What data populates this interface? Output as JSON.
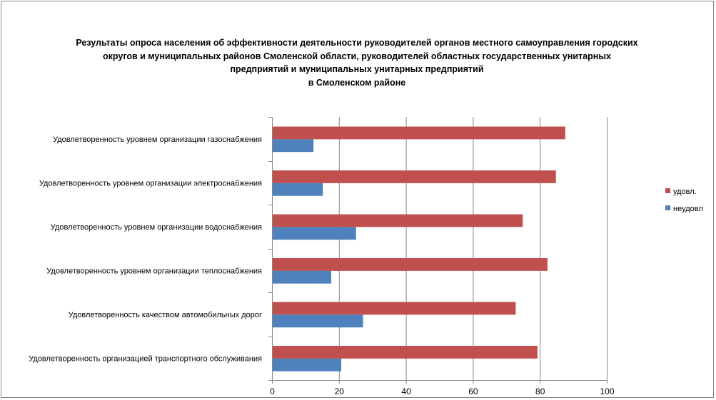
{
  "chart_data": {
    "type": "bar",
    "orientation": "horizontal",
    "title_lines": [
      "Результаты опроса населения об эффективности деятельности руководителей органов местного самоуправления городских",
      "округов и муниципальных районов Смоленской области, руководителей областных государственных унитарных",
      "предприятий и муниципальных унитарных предприятий",
      "в Смоленском районе"
    ],
    "categories": [
      "Удовлетворенность  уровнем  организации газоснабжения",
      "Удовлетворенность  уровнем организации электроснабжения",
      "Удовлетворенность  уровнем  организации водоснабжения",
      "Удовлетворенность  уровнем  организации теплоснабжения",
      "Удовлетворенность  качеством  автомобильных дорог",
      "Удовлетворенность  организацией  транспортного обслуживания"
    ],
    "series": [
      {
        "name": "удовл.",
        "color": "#C0504D",
        "values": [
          87.6,
          84.8,
          74.9,
          82.3,
          72.8,
          79.3
        ]
      },
      {
        "name": "неудовл",
        "color": "#4F81BD",
        "values": [
          12.4,
          15.2,
          25.1,
          17.7,
          27.2,
          20.7
        ]
      }
    ],
    "xlim": [
      0,
      100
    ],
    "xticks": [
      "0",
      "20",
      "40",
      "60",
      "80",
      "100"
    ],
    "grid": true,
    "legend": "right"
  }
}
